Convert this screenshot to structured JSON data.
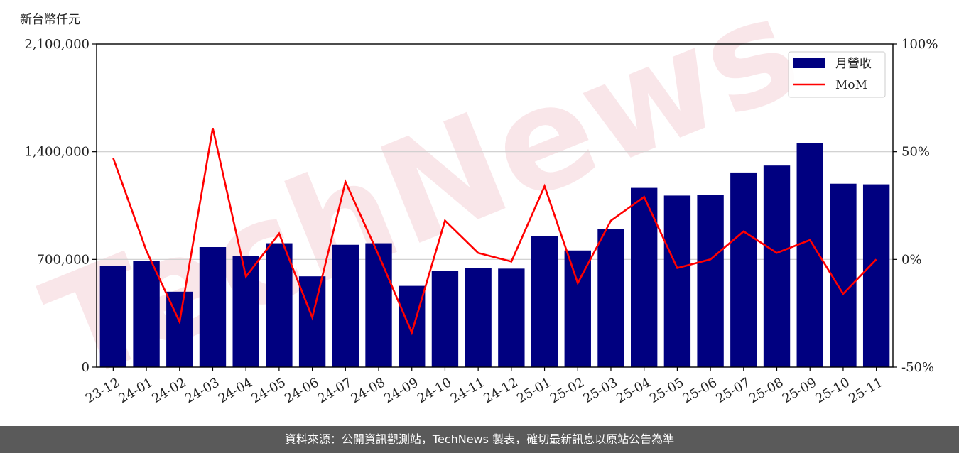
{
  "chart_data": {
    "type": "bar",
    "y_unit_label": "新台幣仟元",
    "categories": [
      "23-12",
      "24-01",
      "24-02",
      "24-03",
      "24-04",
      "24-05",
      "24-06",
      "24-07",
      "24-08",
      "24-09",
      "24-10",
      "24-11",
      "24-12",
      "25-01",
      "25-02",
      "25-03",
      "25-04",
      "25-05",
      "25-06",
      "25-07",
      "25-08",
      "25-09",
      "25-10",
      "25-11"
    ],
    "series": [
      {
        "name": "月營收",
        "kind": "bar",
        "axis": "left",
        "color": "#000080",
        "values": [
          660000,
          690000,
          490000,
          780000,
          720000,
          805000,
          590000,
          795000,
          805000,
          528000,
          625000,
          645000,
          640000,
          850000,
          758000,
          900000,
          1165000,
          1115000,
          1120000,
          1265000,
          1310000,
          1455000,
          1192000,
          1188000
        ]
      },
      {
        "name": "MoM",
        "kind": "line",
        "axis": "right",
        "color": "#ff0000",
        "values": [
          47,
          4,
          -29,
          61,
          -8,
          12,
          -27,
          36,
          2,
          -34,
          18,
          3,
          -1,
          34,
          -11,
          18,
          29,
          -4,
          0,
          13,
          3,
          9,
          -16,
          0
        ]
      }
    ],
    "y_left": {
      "min": 0,
      "max": 2100000,
      "ticks": [
        0,
        700000,
        1400000,
        2100000
      ],
      "tick_labels": [
        "0",
        "700,000",
        "1,400,000",
        "2,100,000"
      ]
    },
    "y_right": {
      "min": -50,
      "max": 100,
      "ticks": [
        -50,
        0,
        50,
        100
      ],
      "tick_labels": [
        "-50%",
        "0%",
        "50%",
        "100%"
      ]
    },
    "grid": true,
    "legend": "top-right",
    "watermark": "TechNews"
  },
  "footer": {
    "text": "資料來源：公開資訊觀測站，TechNews 製表，確切最新訊息以原站公告為準"
  }
}
